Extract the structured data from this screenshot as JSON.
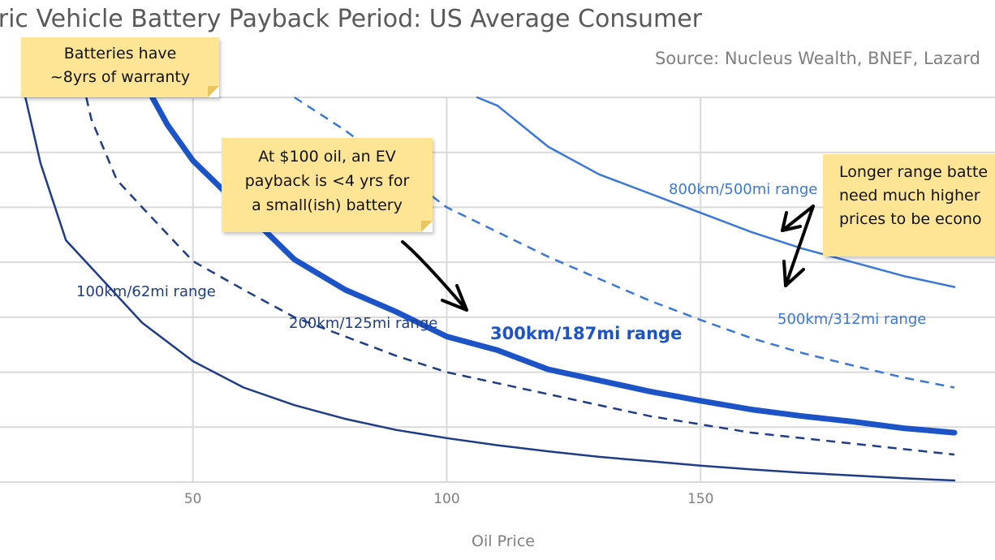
{
  "title": "tric Vehicle Battery Payback Period: US Average Consumer",
  "source": "Source: Nucleus Wealth, BNEF, Lazard",
  "notes": {
    "warranty": "Batteries have\n~8yrs of warranty",
    "payback": "At $100 oil, an EV\npayback is <4 yrs for\na small(ish) battery",
    "longer": "Longer range batte\nneed much higher\nprices to be econo"
  },
  "colors": {
    "dark_navy": "#1f3c88",
    "medium_blue": "#1c54c8",
    "light_blue": "#3a78d8",
    "grid": "#d9d9d9",
    "note_bg": "#fde595"
  },
  "chart_data": {
    "type": "line",
    "xlabel": "Oil Price",
    "ylabel": "",
    "x_ticks": [
      50,
      100,
      150
    ],
    "xlim": [
      12,
      208
    ],
    "ylim": [
      0,
      7
    ],
    "grid": true,
    "series": [
      {
        "name": "100km/62mi range",
        "color": "#1f3c88",
        "style": "solid",
        "width": 2.5,
        "x": [
          17,
          20,
          25,
          30,
          40,
          50,
          60,
          70,
          80,
          90,
          100,
          110,
          120,
          130,
          140,
          150,
          160,
          170,
          180,
          190,
          200
        ],
        "y": [
          7.0,
          5.8,
          4.4,
          3.9,
          2.9,
          2.2,
          1.72,
          1.4,
          1.15,
          0.95,
          0.8,
          0.67,
          0.56,
          0.46,
          0.38,
          0.3,
          0.23,
          0.17,
          0.12,
          0.07,
          0.03
        ]
      },
      {
        "name": "200km/125mi range",
        "color": "#1f3c88",
        "style": "dashed",
        "width": 2.5,
        "x": [
          29,
          30,
          35,
          40,
          50,
          60,
          70,
          80,
          90,
          100,
          120,
          140,
          160,
          180,
          200
        ],
        "y": [
          7.0,
          6.6,
          5.5,
          5.0,
          4.02,
          3.5,
          3.0,
          2.65,
          2.3,
          2.0,
          1.6,
          1.2,
          0.9,
          0.7,
          0.5
        ]
      },
      {
        "name": "300km/187mi range",
        "color": "#1c54c8",
        "style": "solid",
        "width": 7,
        "x": [
          42,
          45,
          50,
          60,
          70,
          80,
          90,
          100,
          110,
          120,
          130,
          140,
          150,
          160,
          170,
          180,
          190,
          200
        ],
        "y": [
          7.0,
          6.5,
          5.85,
          4.95,
          4.05,
          3.5,
          3.1,
          2.65,
          2.4,
          2.05,
          1.85,
          1.65,
          1.48,
          1.32,
          1.2,
          1.1,
          0.98,
          0.9
        ]
      },
      {
        "name": "500km/312mi range",
        "color": "#3a78d8",
        "style": "dashed",
        "width": 2.5,
        "x": [
          70,
          80,
          90,
          100,
          110,
          120,
          130,
          140,
          150,
          160,
          170,
          180,
          190,
          200
        ],
        "y": [
          7.0,
          6.4,
          5.7,
          5.0,
          4.55,
          4.1,
          3.7,
          3.3,
          2.95,
          2.62,
          2.35,
          2.12,
          1.9,
          1.72
        ]
      },
      {
        "name": "800km/500mi range",
        "color": "#3a78d8",
        "style": "solid",
        "width": 2.5,
        "x": [
          106,
          110,
          120,
          130,
          140,
          150,
          160,
          170,
          180,
          190,
          200
        ],
        "y": [
          7.0,
          6.85,
          6.1,
          5.6,
          5.25,
          4.9,
          4.55,
          4.25,
          4.0,
          3.75,
          3.55
        ]
      }
    ]
  }
}
